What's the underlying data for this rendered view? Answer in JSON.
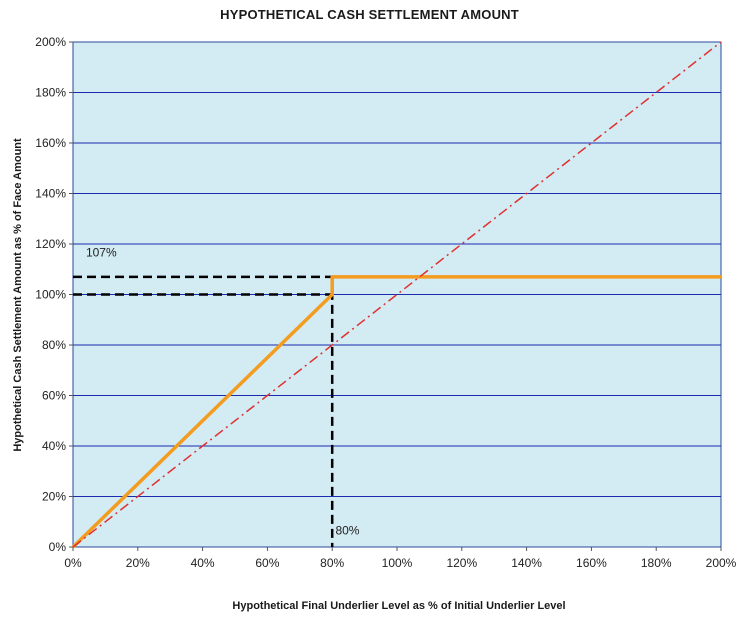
{
  "chart_data": {
    "type": "line",
    "title": "HYPOTHETICAL CASH  SETTLEMENT AMOUNT",
    "xlabel": "Hypothetical Final Underlier Level as % of Initial Underlier Level",
    "ylabel": "Hypothetical Cash  Settlement Amount as % of Face Amount",
    "xlim": [
      0,
      200
    ],
    "ylim": [
      0,
      200
    ],
    "x_ticks": [
      0,
      20,
      40,
      60,
      80,
      100,
      120,
      140,
      160,
      180,
      200
    ],
    "y_ticks": [
      0,
      20,
      40,
      60,
      80,
      100,
      120,
      140,
      160,
      180,
      200
    ],
    "x_tick_labels": [
      "0%",
      "20%",
      "40%",
      "60%",
      "80%",
      "100%",
      "120%",
      "140%",
      "160%",
      "180%",
      "200%"
    ],
    "y_tick_labels": [
      "0%",
      "20%",
      "40%",
      "60%",
      "80%",
      "100%",
      "120%",
      "140%",
      "160%",
      "180%",
      "200%"
    ],
    "grid": "horizontal",
    "series": [
      {
        "color": "#f39c1f",
        "style": "solid",
        "points": [
          [
            0,
            0
          ],
          [
            80,
            100
          ],
          [
            80,
            107
          ],
          [
            200,
            107
          ]
        ]
      },
      {
        "color": "#e03030",
        "style": "dash-dot",
        "points": [
          [
            0,
            0
          ],
          [
            200,
            200
          ]
        ]
      }
    ],
    "reference_lines": [
      {
        "from": [
          0,
          107
        ],
        "to": [
          80,
          107
        ],
        "color": "#000000"
      },
      {
        "from": [
          0,
          100
        ],
        "to": [
          80,
          100
        ],
        "color": "#000000"
      },
      {
        "from": [
          80,
          107
        ],
        "to": [
          80,
          0
        ],
        "color": "#000000"
      }
    ],
    "annotations": [
      {
        "text": "107%",
        "x": 4,
        "y": 115
      },
      {
        "text": "80%",
        "x": 81,
        "y": 5
      }
    ],
    "colors": {
      "plot_background": "#d3ebf3",
      "gridline": "#1a2bb0",
      "frame": "#2a4a9a"
    }
  }
}
